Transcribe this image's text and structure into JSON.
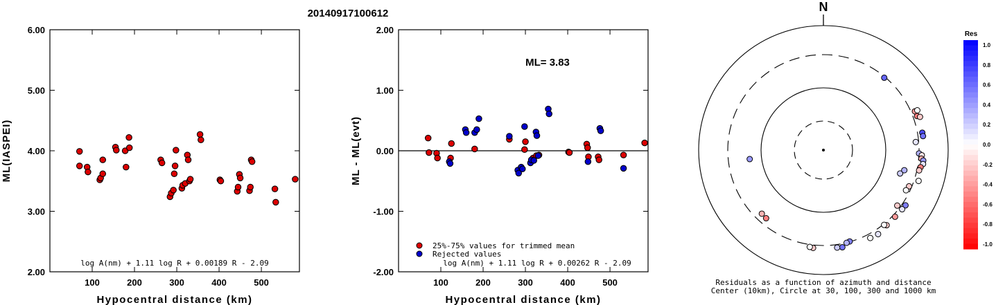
{
  "event_id": "20140917100612",
  "chart_data": [
    {
      "type": "scatter",
      "title": "20140917100612",
      "xlabel": "Hypocentral distance (km)",
      "ylabel": "ML(IASPEI)",
      "xlim": [
        0,
        590
      ],
      "ylim": [
        2.0,
        6.0
      ],
      "x_ticks": [
        100,
        200,
        300,
        400,
        500
      ],
      "x_tick_labels": [
        "100",
        "200",
        "300",
        "400",
        "500"
      ],
      "y_ticks": [
        2.0,
        3.0,
        4.0,
        5.0,
        6.0
      ],
      "y_tick_labels": [
        "2.00",
        "3.00",
        "4.00",
        "5.00",
        "6.00"
      ],
      "formula": "log A(nm) + 1.11 log R + 0.00189 R - 2.09",
      "marker_color": "#dd0000",
      "points": [
        [
          70,
          3.99
        ],
        [
          70,
          3.75
        ],
        [
          88,
          3.73
        ],
        [
          90,
          3.65
        ],
        [
          118,
          3.52
        ],
        [
          120,
          3.55
        ],
        [
          125,
          3.85
        ],
        [
          125,
          3.62
        ],
        [
          155,
          4.06
        ],
        [
          157,
          4.01
        ],
        [
          178,
          4.0
        ],
        [
          180,
          3.73
        ],
        [
          187,
          4.22
        ],
        [
          188,
          4.05
        ],
        [
          262,
          3.85
        ],
        [
          265,
          3.8
        ],
        [
          284,
          3.24
        ],
        [
          287,
          3.3
        ],
        [
          292,
          3.35
        ],
        [
          294,
          3.62
        ],
        [
          296,
          3.75
        ],
        [
          298,
          4.01
        ],
        [
          312,
          3.38
        ],
        [
          314,
          3.43
        ],
        [
          320,
          3.46
        ],
        [
          325,
          3.93
        ],
        [
          327,
          3.85
        ],
        [
          330,
          3.5
        ],
        [
          332,
          3.53
        ],
        [
          355,
          4.27
        ],
        [
          357,
          4.18
        ],
        [
          402,
          3.52
        ],
        [
          404,
          3.5
        ],
        [
          443,
          3.33
        ],
        [
          445,
          3.4
        ],
        [
          448,
          3.61
        ],
        [
          450,
          3.55
        ],
        [
          472,
          3.34
        ],
        [
          474,
          3.4
        ],
        [
          476,
          3.85
        ],
        [
          478,
          3.82
        ],
        [
          532,
          3.37
        ],
        [
          534,
          3.15
        ],
        [
          580,
          3.53
        ]
      ]
    },
    {
      "type": "scatter",
      "xlabel": "Hypocentral distance (km)",
      "ylabel": "ML - ML(evt)",
      "xlim": [
        0,
        590
      ],
      "ylim": [
        -2.0,
        2.0
      ],
      "x_ticks": [
        100,
        200,
        300,
        400,
        500
      ],
      "x_tick_labels": [
        "100",
        "200",
        "300",
        "400",
        "500"
      ],
      "y_ticks": [
        -2.0,
        -1.0,
        0.0,
        1.0,
        2.0
      ],
      "y_tick_labels": [
        "-2.00",
        "-1.00",
        "0.00",
        "1.00",
        "2.00"
      ],
      "annotation": "ML= 3.83",
      "formula": "log A(nm) + 1.11 log R + 0.00262 R - 2.09",
      "legend_position": "bottom-left",
      "series": [
        {
          "name": "25%-75% values for trimmed mean",
          "color": "#dd0000",
          "points": [
            [
              70,
              0.21
            ],
            [
              72,
              -0.03
            ],
            [
              90,
              -0.04
            ],
            [
              92,
              -0.12
            ],
            [
              123,
              -0.12
            ],
            [
              125,
              0.12
            ],
            [
              180,
              0.03
            ],
            [
              262,
              0.19
            ],
            [
              298,
              0.02
            ],
            [
              300,
              0.15
            ],
            [
              318,
              -0.12
            ],
            [
              326,
              -0.08
            ],
            [
              332,
              -0.07
            ],
            [
              402,
              -0.02
            ],
            [
              404,
              -0.03
            ],
            [
              445,
              0.11
            ],
            [
              447,
              0.05
            ],
            [
              449,
              -0.1
            ],
            [
              472,
              -0.1
            ],
            [
              474,
              -0.15
            ],
            [
              532,
              -0.07
            ],
            [
              582,
              0.13
            ]
          ]
        },
        {
          "name": "Rejected values",
          "color": "#0000cc",
          "points": [
            [
              120,
              -0.18
            ],
            [
              122,
              -0.21
            ],
            [
              158,
              0.35
            ],
            [
              160,
              0.3
            ],
            [
              180,
              0.3
            ],
            [
              185,
              0.35
            ],
            [
              190,
              0.53
            ],
            [
              262,
              0.24
            ],
            [
              282,
              -0.32
            ],
            [
              284,
              -0.37
            ],
            [
              290,
              -0.27
            ],
            [
              293,
              -0.3
            ],
            [
              298,
              0.4
            ],
            [
              312,
              -0.2
            ],
            [
              314,
              -0.15
            ],
            [
              320,
              -0.16
            ],
            [
              325,
              0.31
            ],
            [
              327,
              0.25
            ],
            [
              330,
              -0.08
            ],
            [
              354,
              0.69
            ],
            [
              356,
              0.61
            ],
            [
              448,
              -0.18
            ],
            [
              476,
              0.37
            ],
            [
              478,
              0.33
            ],
            [
              532,
              -0.29
            ]
          ]
        }
      ]
    },
    {
      "type": "scatter",
      "subtype": "polar",
      "north_label": "N",
      "caption_line1": "Residuals as a function of azimuth and distance",
      "caption_line2": "Center (10km), Circle at 30, 100, 300 and 1000 km",
      "rings_km": [
        30,
        100,
        300,
        1000
      ],
      "colorbar_title": "Res",
      "colorbar_ticks": [
        "1.0",
        "0.8",
        "0.6",
        "0.4",
        "0.2",
        "0.0",
        "-0.2",
        "-0.4",
        "-0.6",
        "-0.8",
        "-1.0"
      ],
      "points": [
        {
          "az": 107,
          "dist": 180,
          "res": 0.2
        },
        {
          "az": 85,
          "dist": 272,
          "res": 0.1
        },
        {
          "az": 104,
          "dist": 200,
          "res": 0.3
        },
        {
          "az": 40,
          "dist": 290,
          "res": 0.6
        },
        {
          "az": 67,
          "dist": 350,
          "res": -0.4
        },
        {
          "az": 70,
          "dist": 355,
          "res": -0.5
        },
        {
          "az": 67,
          "dist": 390,
          "res": 0.0
        },
        {
          "az": 71,
          "dist": 393,
          "res": -0.2
        },
        {
          "az": 80,
          "dist": 365,
          "res": 0.7
        },
        {
          "az": 82,
          "dist": 368,
          "res": 0.55
        },
        {
          "az": 92,
          "dist": 300,
          "res": 0.3
        },
        {
          "az": 93,
          "dist": 338,
          "res": -0.1
        },
        {
          "az": 95,
          "dist": 335,
          "res": -0.3
        },
        {
          "az": 96,
          "dist": 365,
          "res": 0.4
        },
        {
          "az": 98,
          "dist": 368,
          "res": 0.1
        },
        {
          "az": 100,
          "dist": 340,
          "res": -0.5
        },
        {
          "az": 102,
          "dist": 328,
          "res": -0.2
        },
        {
          "az": 108,
          "dist": 360,
          "res": 0.0
        },
        {
          "az": 113,
          "dist": 275,
          "res": -0.2
        },
        {
          "az": 116,
          "dist": 265,
          "res": 0.0
        },
        {
          "az": 127,
          "dist": 270,
          "res": -0.2
        },
        {
          "az": 124,
          "dist": 345,
          "res": 0.5
        },
        {
          "az": 127,
          "dist": 338,
          "res": 0.1
        },
        {
          "az": 133,
          "dist": 330,
          "res": -0.4
        },
        {
          "az": 140,
          "dist": 335,
          "res": -0.2
        },
        {
          "az": 141,
          "dist": 310,
          "res": 0.0
        },
        {
          "az": 147,
          "dist": 365,
          "res": 0.1
        },
        {
          "az": 152,
          "dist": 356,
          "res": 0.0
        },
        {
          "az": 164,
          "dist": 296,
          "res": 0.5
        },
        {
          "az": 166,
          "dist": 302,
          "res": 0.3
        },
        {
          "az": 169,
          "dist": 348,
          "res": 0.55
        },
        {
          "az": 172,
          "dist": 340,
          "res": 0.2
        },
        {
          "az": 186,
          "dist": 339,
          "res": -0.2
        },
        {
          "az": 188,
          "dist": 331,
          "res": 0.0
        },
        {
          "az": 220,
          "dist": 242,
          "res": -0.5
        },
        {
          "az": 224,
          "dist": 238,
          "res": -0.3
        },
        {
          "az": 263,
          "dist": 148,
          "res": 0.4
        }
      ]
    }
  ]
}
